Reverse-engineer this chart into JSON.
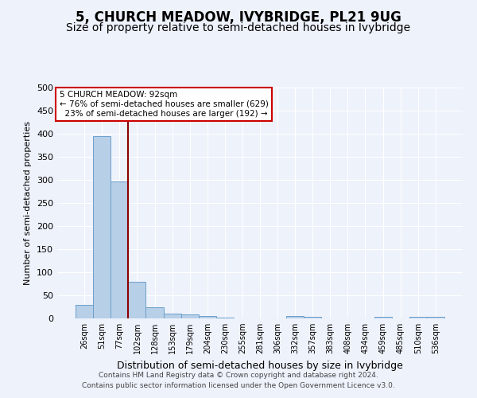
{
  "title": "5, CHURCH MEADOW, IVYBRIDGE, PL21 9UG",
  "subtitle": "Size of property relative to semi-detached houses in Ivybridge",
  "xlabel": "Distribution of semi-detached houses by size in Ivybridge",
  "ylabel": "Number of semi-detached properties",
  "categories": [
    "26sqm",
    "51sqm",
    "77sqm",
    "102sqm",
    "128sqm",
    "153sqm",
    "179sqm",
    "204sqm",
    "230sqm",
    "255sqm",
    "281sqm",
    "306sqm",
    "332sqm",
    "357sqm",
    "383sqm",
    "408sqm",
    "434sqm",
    "459sqm",
    "485sqm",
    "510sqm",
    "536sqm"
  ],
  "values": [
    29,
    395,
    297,
    80,
    24,
    10,
    8,
    5,
    2,
    0,
    0,
    0,
    6,
    3,
    0,
    0,
    0,
    4,
    0,
    4,
    4
  ],
  "bar_color": "#b8cfe8",
  "bar_edge_color": "#6aa0cb",
  "property_line_x": 2.5,
  "property_value": "92sqm",
  "property_name": "5 CHURCH MEADOW",
  "pct_smaller": 76,
  "count_smaller": 629,
  "pct_larger": 23,
  "count_larger": 192,
  "annotation_box_color": "#ffffff",
  "annotation_box_edge": "#cc0000",
  "line_color": "#8b0000",
  "footer1": "Contains HM Land Registry data © Crown copyright and database right 2024.",
  "footer2": "Contains public sector information licensed under the Open Government Licence v3.0.",
  "bg_color": "#eef2fb",
  "ylim": [
    0,
    500
  ],
  "title_fontsize": 12,
  "subtitle_fontsize": 10
}
